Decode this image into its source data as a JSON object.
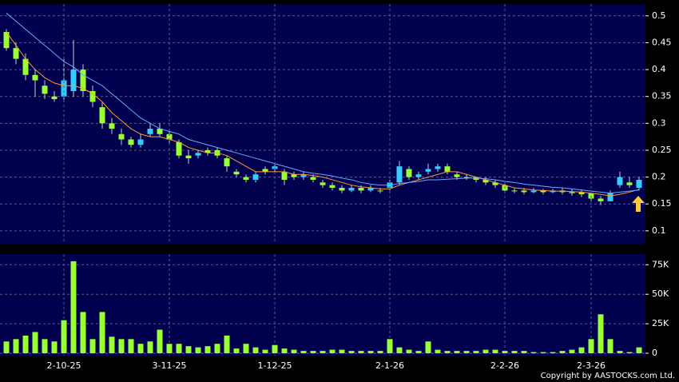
{
  "chart_data": [
    {
      "type": "candlestick",
      "open": [
        0.47,
        0.44,
        0.42,
        0.39,
        0.37,
        0.35,
        0.35,
        0.36,
        0.4,
        0.36,
        0.33,
        0.3,
        0.28,
        0.27,
        0.26,
        0.28,
        0.29,
        0.28,
        0.265,
        0.24,
        0.24,
        0.25,
        0.25,
        0.235,
        0.21,
        0.2,
        0.195,
        0.215,
        0.215,
        0.21,
        0.205,
        0.2,
        0.2,
        0.19,
        0.185,
        0.18,
        0.175,
        0.18,
        0.175,
        0.175,
        0.18,
        0.19,
        0.215,
        0.2,
        0.21,
        0.215,
        0.22,
        0.205,
        0.2,
        0.2,
        0.195,
        0.19,
        0.185,
        0.175,
        0.175,
        0.172,
        0.175,
        0.172,
        0.175,
        0.172,
        0.172,
        0.17,
        0.16,
        0.155,
        0.185,
        0.19,
        0.18
      ],
      "high": [
        0.475,
        0.45,
        0.43,
        0.4,
        0.38,
        0.36,
        0.42,
        0.455,
        0.41,
        0.37,
        0.34,
        0.31,
        0.29,
        0.275,
        0.28,
        0.3,
        0.3,
        0.29,
        0.27,
        0.25,
        0.25,
        0.255,
        0.255,
        0.24,
        0.215,
        0.205,
        0.21,
        0.22,
        0.225,
        0.215,
        0.21,
        0.21,
        0.205,
        0.195,
        0.19,
        0.185,
        0.185,
        0.185,
        0.185,
        0.18,
        0.195,
        0.23,
        0.22,
        0.21,
        0.225,
        0.225,
        0.225,
        0.21,
        0.205,
        0.2,
        0.2,
        0.195,
        0.19,
        0.18,
        0.18,
        0.18,
        0.178,
        0.178,
        0.18,
        0.178,
        0.176,
        0.175,
        0.165,
        0.175,
        0.21,
        0.2,
        0.2
      ],
      "low": [
        0.435,
        0.41,
        0.38,
        0.35,
        0.345,
        0.34,
        0.34,
        0.35,
        0.35,
        0.33,
        0.29,
        0.28,
        0.26,
        0.255,
        0.255,
        0.275,
        0.275,
        0.26,
        0.235,
        0.225,
        0.235,
        0.24,
        0.235,
        0.21,
        0.2,
        0.19,
        0.19,
        0.205,
        0.21,
        0.185,
        0.195,
        0.195,
        0.19,
        0.18,
        0.175,
        0.17,
        0.172,
        0.17,
        0.172,
        0.17,
        0.175,
        0.185,
        0.195,
        0.195,
        0.205,
        0.21,
        0.205,
        0.195,
        0.195,
        0.19,
        0.185,
        0.18,
        0.17,
        0.17,
        0.168,
        0.17,
        0.168,
        0.17,
        0.168,
        0.165,
        0.163,
        0.155,
        0.148,
        0.155,
        0.18,
        0.18,
        0.175
      ],
      "close": [
        0.44,
        0.42,
        0.39,
        0.38,
        0.355,
        0.345,
        0.38,
        0.4,
        0.36,
        0.34,
        0.3,
        0.29,
        0.27,
        0.26,
        0.27,
        0.29,
        0.28,
        0.27,
        0.24,
        0.235,
        0.245,
        0.245,
        0.24,
        0.22,
        0.205,
        0.195,
        0.205,
        0.21,
        0.22,
        0.195,
        0.2,
        0.205,
        0.195,
        0.185,
        0.18,
        0.175,
        0.18,
        0.175,
        0.18,
        0.175,
        0.19,
        0.22,
        0.2,
        0.205,
        0.215,
        0.22,
        0.21,
        0.2,
        0.2,
        0.195,
        0.19,
        0.185,
        0.175,
        0.175,
        0.172,
        0.175,
        0.172,
        0.175,
        0.172,
        0.17,
        0.168,
        0.16,
        0.155,
        0.17,
        0.2,
        0.185,
        0.195
      ],
      "up_color": "#33ccff",
      "down_color": "#99ff33",
      "lines": [
        {
          "color": "#ff9933",
          "values": [
            0.47,
            0.445,
            0.42,
            0.4,
            0.385,
            0.375,
            0.37,
            0.37,
            0.365,
            0.355,
            0.34,
            0.32,
            0.305,
            0.29,
            0.28,
            0.275,
            0.275,
            0.27,
            0.265,
            0.255,
            0.25,
            0.245,
            0.245,
            0.24,
            0.23,
            0.22,
            0.21,
            0.21,
            0.21,
            0.21,
            0.205,
            0.205,
            0.203,
            0.2,
            0.195,
            0.19,
            0.185,
            0.182,
            0.18,
            0.178,
            0.178,
            0.185,
            0.19,
            0.195,
            0.2,
            0.205,
            0.21,
            0.21,
            0.205,
            0.2,
            0.195,
            0.19,
            0.185,
            0.18,
            0.178,
            0.176,
            0.175,
            0.174,
            0.174,
            0.173,
            0.172,
            0.17,
            0.168,
            0.165,
            0.168,
            0.172,
            0.177
          ]
        },
        {
          "color": "#66aaff",
          "values": [
            0.505,
            0.49,
            0.475,
            0.46,
            0.445,
            0.43,
            0.415,
            0.405,
            0.39,
            0.38,
            0.37,
            0.355,
            0.34,
            0.325,
            0.31,
            0.3,
            0.29,
            0.285,
            0.28,
            0.27,
            0.265,
            0.26,
            0.255,
            0.25,
            0.245,
            0.24,
            0.235,
            0.23,
            0.225,
            0.22,
            0.215,
            0.21,
            0.207,
            0.205,
            0.202,
            0.198,
            0.195,
            0.19,
            0.187,
            0.185,
            0.185,
            0.188,
            0.19,
            0.192,
            0.195,
            0.195,
            0.196,
            0.197,
            0.198,
            0.198,
            0.197,
            0.195,
            0.192,
            0.19,
            0.187,
            0.185,
            0.183,
            0.181,
            0.18,
            0.178,
            0.176,
            0.174,
            0.172,
            0.17,
            0.172,
            0.174,
            0.176
          ]
        }
      ],
      "ylim": [
        0.076,
        0.522
      ],
      "yticks": [
        0.1,
        0.15,
        0.2,
        0.25,
        0.3,
        0.35,
        0.4,
        0.45,
        0.5
      ],
      "grid": true
    },
    {
      "type": "bar",
      "categories": [
        null,
        null,
        null,
        null,
        null,
        null,
        "2-10-25",
        null,
        null,
        null,
        null,
        null,
        null,
        null,
        null,
        null,
        null,
        "3-11-25",
        null,
        null,
        null,
        null,
        null,
        null,
        null,
        null,
        null,
        null,
        "1-12-25",
        null,
        null,
        null,
        null,
        null,
        null,
        null,
        null,
        null,
        null,
        null,
        "2-1-26",
        null,
        null,
        null,
        null,
        null,
        null,
        null,
        null,
        null,
        null,
        null,
        "2-2-26",
        null,
        null,
        null,
        null,
        null,
        null,
        null,
        null,
        "2-3-26",
        null,
        null,
        null,
        null,
        null
      ],
      "values": [
        10000,
        12000,
        15000,
        18000,
        12000,
        10000,
        28000,
        78000,
        35000,
        12000,
        35000,
        14000,
        12000,
        12000,
        8000,
        10000,
        20000,
        8000,
        8000,
        6000,
        5000,
        6000,
        8000,
        15000,
        4000,
        8000,
        5000,
        3000,
        7000,
        4000,
        3000,
        2000,
        2000,
        2000,
        3000,
        3000,
        2000,
        2000,
        2000,
        2000,
        12000,
        5000,
        3000,
        2000,
        10000,
        3000,
        2000,
        2000,
        2000,
        2000,
        3000,
        3000,
        2000,
        2000,
        2000,
        1000,
        1000,
        1000,
        2000,
        3000,
        5000,
        12000,
        33000,
        12000,
        2000,
        1000,
        5000
      ],
      "color": "#99ff33",
      "ylim": [
        -2000,
        84000
      ],
      "yticks": [
        0,
        {
          "value": 25000,
          "label": "25K"
        },
        {
          "value": 50000,
          "label": "50K"
        },
        {
          "value": 75000,
          "label": "75K"
        }
      ],
      "grid": true
    }
  ],
  "footer": "Copyright by AASTOCKS.com Ltd."
}
